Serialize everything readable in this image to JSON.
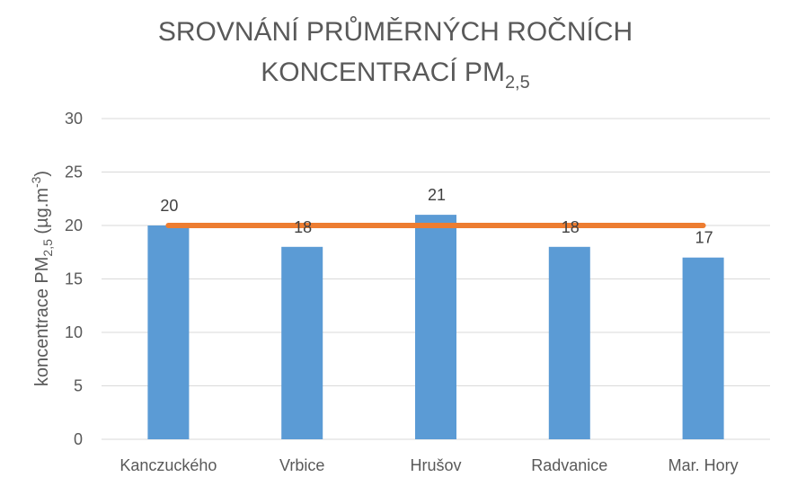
{
  "chart_data": {
    "type": "bar",
    "title_line1": "SROVNÁNÍ PRŮMĚRNÝCH ROČNÍCH",
    "title_line2_main": "KONCENTRACÍ PM",
    "title_line2_sub": "2,5",
    "ylabel_main": "koncentrace PM",
    "ylabel_sub": "2,5",
    "ylabel_unit": " (µg.m",
    "ylabel_sup": "-3",
    "ylabel_close": ")",
    "xlabel": "",
    "categories": [
      "Kanczuckého",
      "Vrbice",
      "Hrušov",
      "Radvanice",
      "Mar. Hory"
    ],
    "values": [
      20,
      18,
      21,
      18,
      17
    ],
    "data_labels": [
      "20",
      "18",
      "21",
      "18",
      "17"
    ],
    "reference_line": 20,
    "ylim": [
      0,
      30
    ],
    "yticks": [
      "0",
      "5",
      "10",
      "15",
      "20",
      "25",
      "30"
    ],
    "ytick_values": [
      0,
      5,
      10,
      15,
      20,
      25,
      30
    ],
    "grid": true,
    "bar_color": "#5B9BD5",
    "line_color": "#ED7D31",
    "grid_color": "#D9D9D9"
  }
}
